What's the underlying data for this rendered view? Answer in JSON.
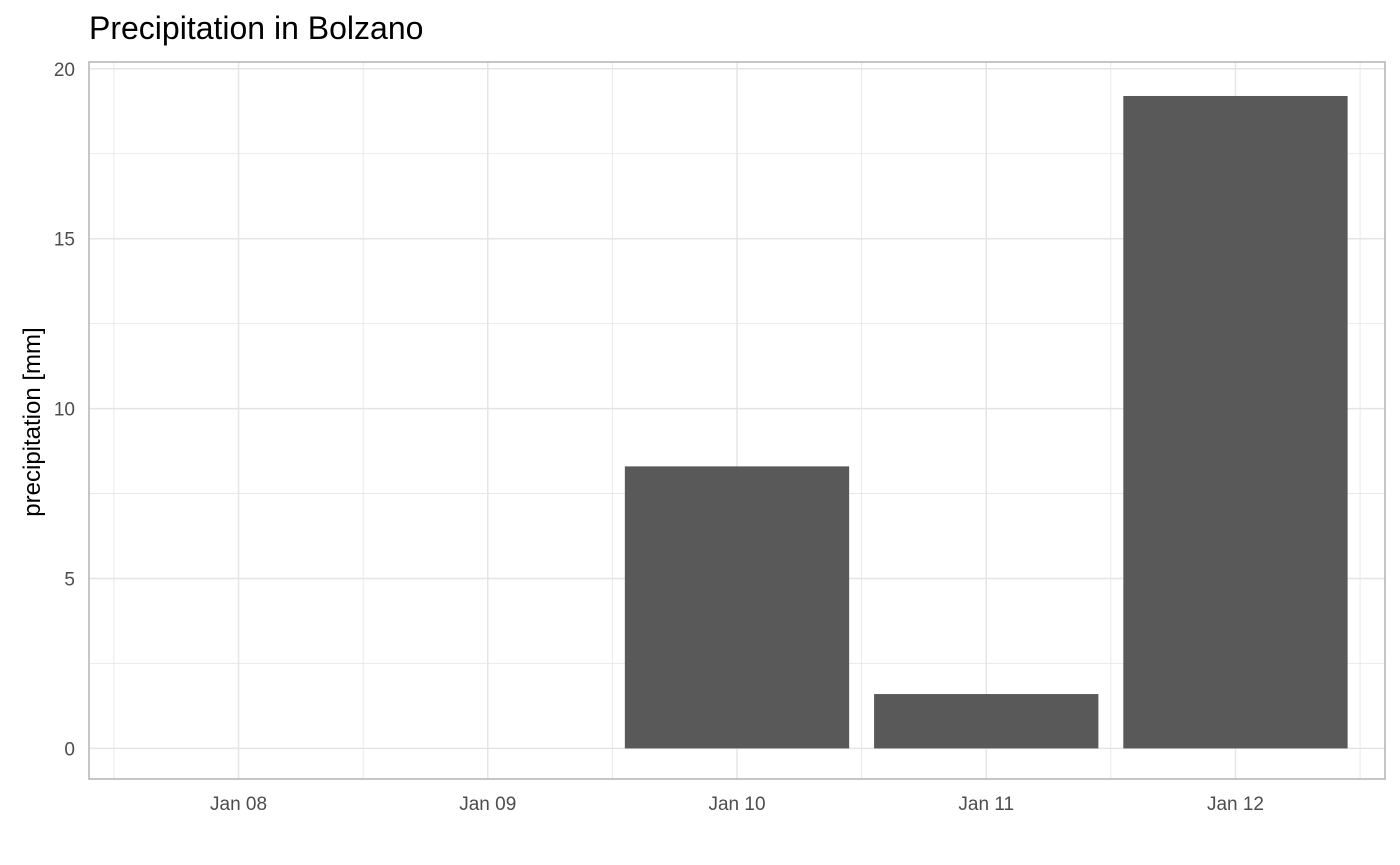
{
  "chart_data": {
    "type": "bar",
    "title": "Precipitation in Bolzano",
    "xlabel": "",
    "ylabel": "precipitation [mm]",
    "categories": [
      "Jan 08",
      "Jan 09",
      "Jan 10",
      "Jan 11",
      "Jan 12"
    ],
    "values": [
      0,
      0,
      8.3,
      1.6,
      19.2
    ],
    "ylim": [
      0,
      20
    ],
    "yticks": [
      0,
      5,
      10,
      15,
      20
    ],
    "grid": true,
    "bar_color": "#595959",
    "grid_color": "#e5e5e5",
    "panel_border_color": "#b3b3b3"
  }
}
